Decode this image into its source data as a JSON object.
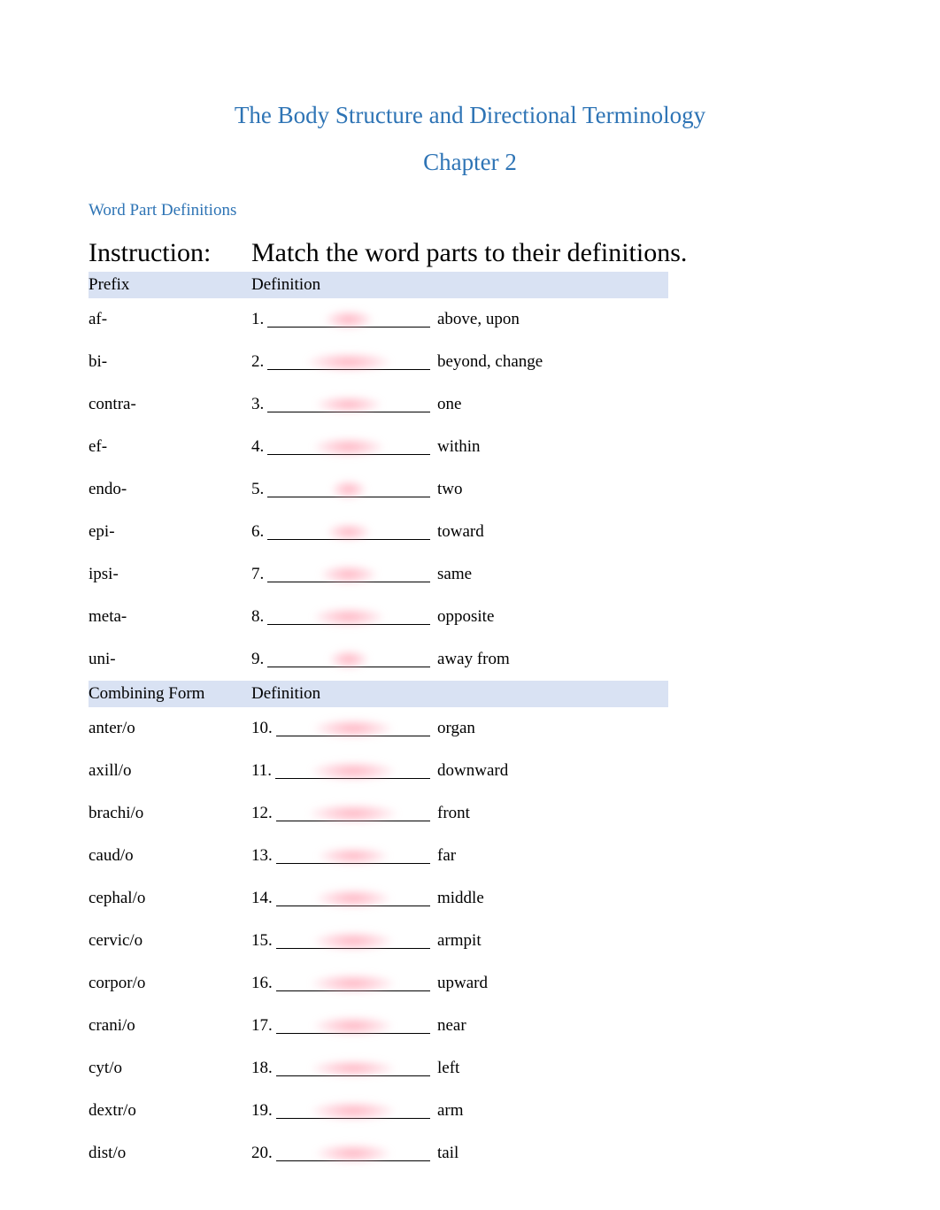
{
  "title": "The Body Structure and Directional Terminology",
  "chapter": "Chapter 2",
  "section_label": "Word Part Definitions",
  "instruction_label": "Instruction:",
  "instruction_text": "Match the word parts to their definitions.",
  "header1": {
    "col1": "Prefix",
    "col2": "Definition"
  },
  "header2": {
    "col1": "Combining Form",
    "col2": "Definition"
  },
  "colors": {
    "heading": "#2e74b5",
    "text": "#000000",
    "header_bg": "#d9e2f3",
    "blur": "#ff9cb0"
  },
  "rows1": [
    {
      "prefix": "af-",
      "num": "1.",
      "def": "above, upon",
      "bw": 55,
      "bh": 22
    },
    {
      "prefix": "bi-",
      "num": "2.",
      "def": "beyond, change",
      "bw": 95,
      "bh": 22
    },
    {
      "prefix": "contra-",
      "num": "3.",
      "def": "one",
      "bw": 75,
      "bh": 20
    },
    {
      "prefix": "ef-",
      "num": "4.",
      "def": "within",
      "bw": 80,
      "bh": 22
    },
    {
      "prefix": "endo-",
      "num": "5.",
      "def": "two",
      "bw": 40,
      "bh": 22
    },
    {
      "prefix": "epi-",
      "num": "6.",
      "def": "toward",
      "bw": 50,
      "bh": 20
    },
    {
      "prefix": "ipsi-",
      "num": "7.",
      "def": "same",
      "bw": 65,
      "bh": 22
    },
    {
      "prefix": "meta-",
      "num": "8.",
      "def": "opposite",
      "bw": 80,
      "bh": 22
    },
    {
      "prefix": "uni-",
      "num": "9.",
      "def": "away from",
      "bw": 45,
      "bh": 22
    }
  ],
  "rows2": [
    {
      "prefix": "anter/o",
      "num": "10.",
      "def": "organ",
      "bw": 90,
      "bh": 22
    },
    {
      "prefix": "axill/o",
      "num": "11.",
      "def": "downward",
      "bw": 95,
      "bh": 22
    },
    {
      "prefix": "brachi/o",
      "num": "12.",
      "def": "front",
      "bw": 100,
      "bh": 22
    },
    {
      "prefix": "caud/o",
      "num": "13.",
      "def": "far",
      "bw": 80,
      "bh": 20
    },
    {
      "prefix": "cephal/o",
      "num": "14.",
      "def": "middle",
      "bw": 85,
      "bh": 22
    },
    {
      "prefix": "cervic/o",
      "num": "15.",
      "def": "armpit",
      "bw": 90,
      "bh": 22
    },
    {
      "prefix": "corpor/o",
      "num": "16.",
      "def": "upward",
      "bw": 95,
      "bh": 22
    },
    {
      "prefix": "crani/o",
      "num": "17.",
      "def": "near",
      "bw": 90,
      "bh": 22
    },
    {
      "prefix": "cyt/o",
      "num": "18.",
      "def": "left",
      "bw": 95,
      "bh": 20
    },
    {
      "prefix": "dextr/o",
      "num": "19.",
      "def": "arm",
      "bw": 95,
      "bh": 22
    },
    {
      "prefix": "dist/o",
      "num": "20.",
      "def": "tail",
      "bw": 85,
      "bh": 22
    }
  ]
}
